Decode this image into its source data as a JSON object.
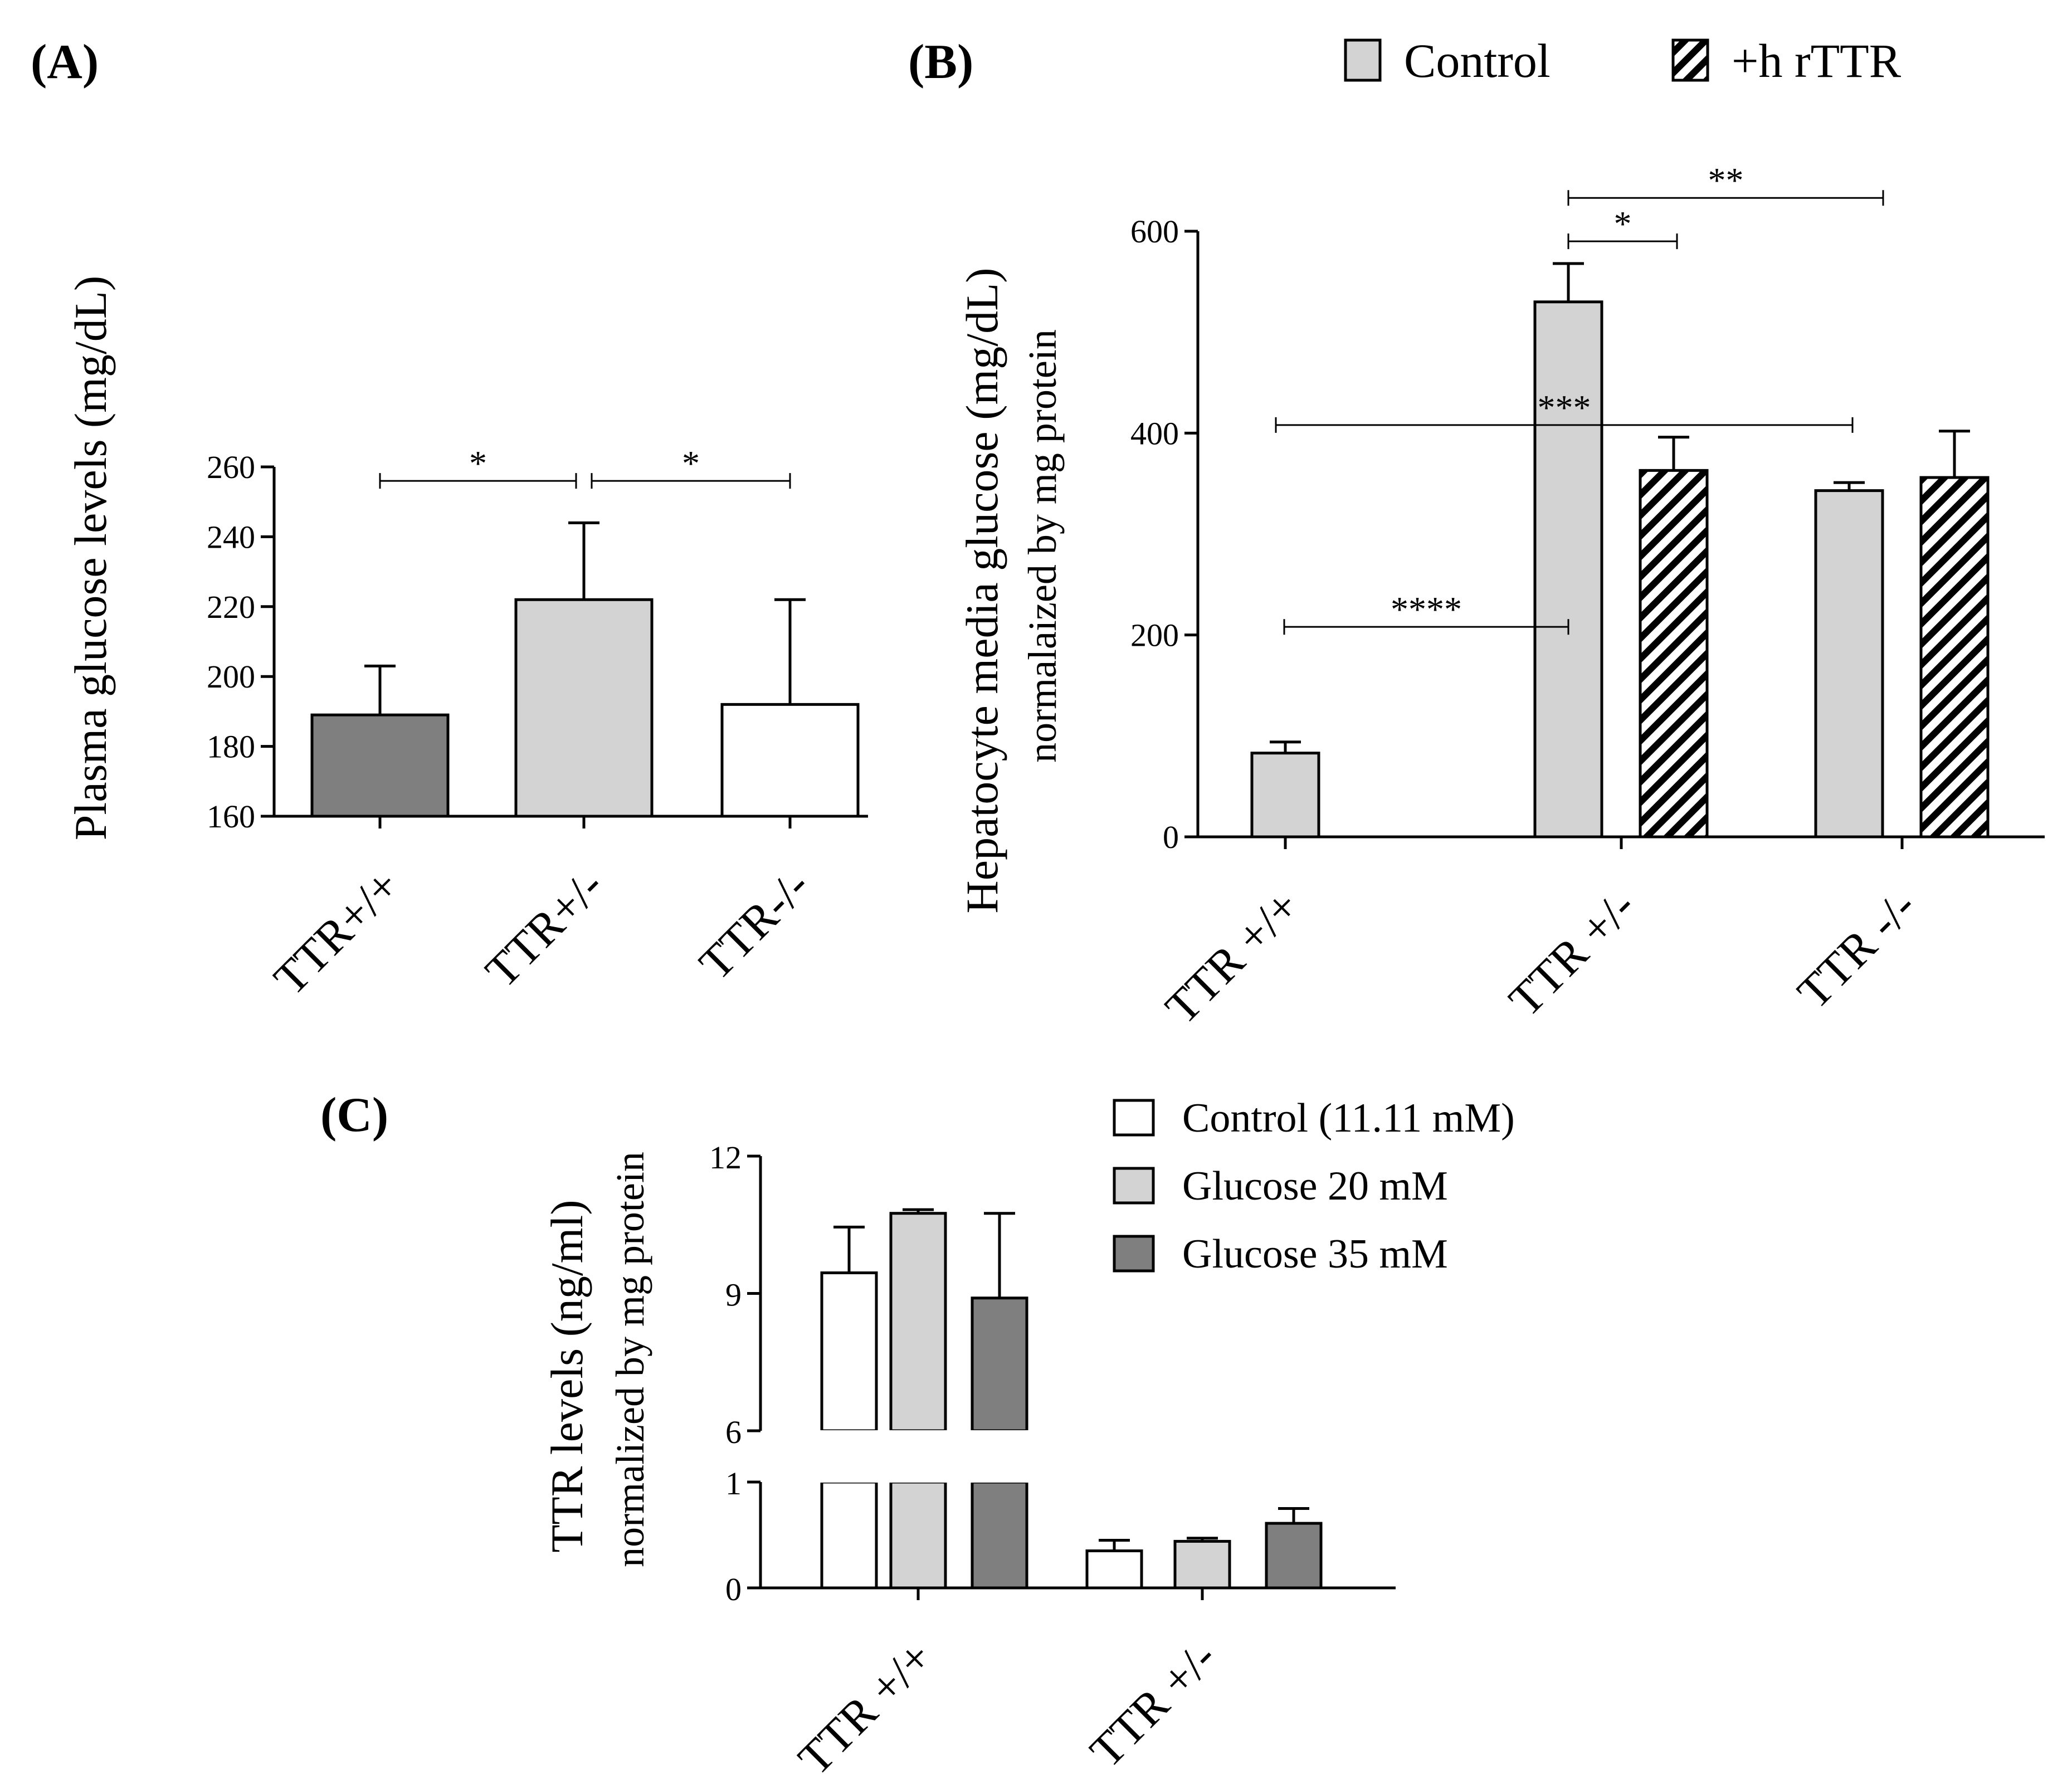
{
  "colors": {
    "dark_gray": "#7f7f7f",
    "light_gray": "#d3d3d3",
    "white": "#ffffff",
    "black": "#000000"
  },
  "chart_data": [
    {
      "id": "A",
      "panel_label": "(A)",
      "type": "bar",
      "categories": [
        "TTR+/+",
        "TTR+/-",
        "TTR-/-"
      ],
      "values": [
        189,
        222,
        192
      ],
      "errors": [
        14,
        22,
        30
      ],
      "bar_colors": [
        "#7f7f7f",
        "#d3d3d3",
        "#ffffff"
      ],
      "ylabel": "Plasma glucose levels (mg/dL)",
      "ylim": [
        160,
        260
      ],
      "yticks": [
        160,
        180,
        200,
        220,
        240,
        260
      ],
      "significance": [
        {
          "from": 0,
          "to": 1,
          "label": "*",
          "y": 256
        },
        {
          "from": 1,
          "to": 2,
          "label": "*",
          "y": 256
        }
      ]
    },
    {
      "id": "B",
      "panel_label": "(B)",
      "type": "bar",
      "categories": [
        "TTR +/+",
        "TTR +/-",
        "TTR -/-"
      ],
      "series": [
        {
          "name": "Control",
          "values": [
            83,
            530,
            343
          ],
          "errors": [
            11,
            38,
            8
          ]
        },
        {
          "name": "+h rTTR",
          "values": [
            null,
            363,
            356
          ],
          "errors": [
            null,
            33,
            46
          ]
        }
      ],
      "legend": {
        "position": "top-right",
        "items": [
          "Control",
          "+h rTTR"
        ]
      },
      "ylabel": "Hepatocyte media glucose (mg/dL)",
      "ylabel2": "normalaized by mg protein",
      "ylim": [
        0,
        600
      ],
      "yticks": [
        0,
        200,
        400,
        600
      ],
      "significance": [
        {
          "label": "**",
          "y": 633
        },
        {
          "label": "*",
          "y": 590
        },
        {
          "label": "***",
          "y": 408
        },
        {
          "label": "****",
          "y": 208
        }
      ]
    },
    {
      "id": "C",
      "panel_label": "(C)",
      "type": "bar",
      "categories": [
        "TTR +/+",
        "TTR +/-"
      ],
      "series": [
        {
          "name": "Control (11.11 mM)",
          "values": [
            9.45,
            0.35
          ],
          "errors": [
            1.0,
            0.1
          ],
          "color": "#ffffff"
        },
        {
          "name": "Glucose 20 mM",
          "values": [
            10.75,
            0.44
          ],
          "errors": [
            0.08,
            0.03
          ],
          "color": "#d3d3d3"
        },
        {
          "name": "Glucose 35 mM",
          "values": [
            8.9,
            0.61
          ],
          "errors": [
            1.85,
            0.14
          ],
          "color": "#7f7f7f"
        }
      ],
      "legend": {
        "position": "top-right",
        "items": [
          "Control (11.11 mM)",
          "Glucose 20 mM",
          "Glucose 35 mM"
        ]
      },
      "ylabel": "TTR levels (ng/ml)",
      "ylabel2": "normalized by mg protein",
      "ylim_upper": [
        6,
        12
      ],
      "yticks_upper": [
        6,
        9,
        12
      ],
      "ylim_lower": [
        0,
        1
      ],
      "yticks_lower": [
        0,
        1
      ]
    }
  ]
}
